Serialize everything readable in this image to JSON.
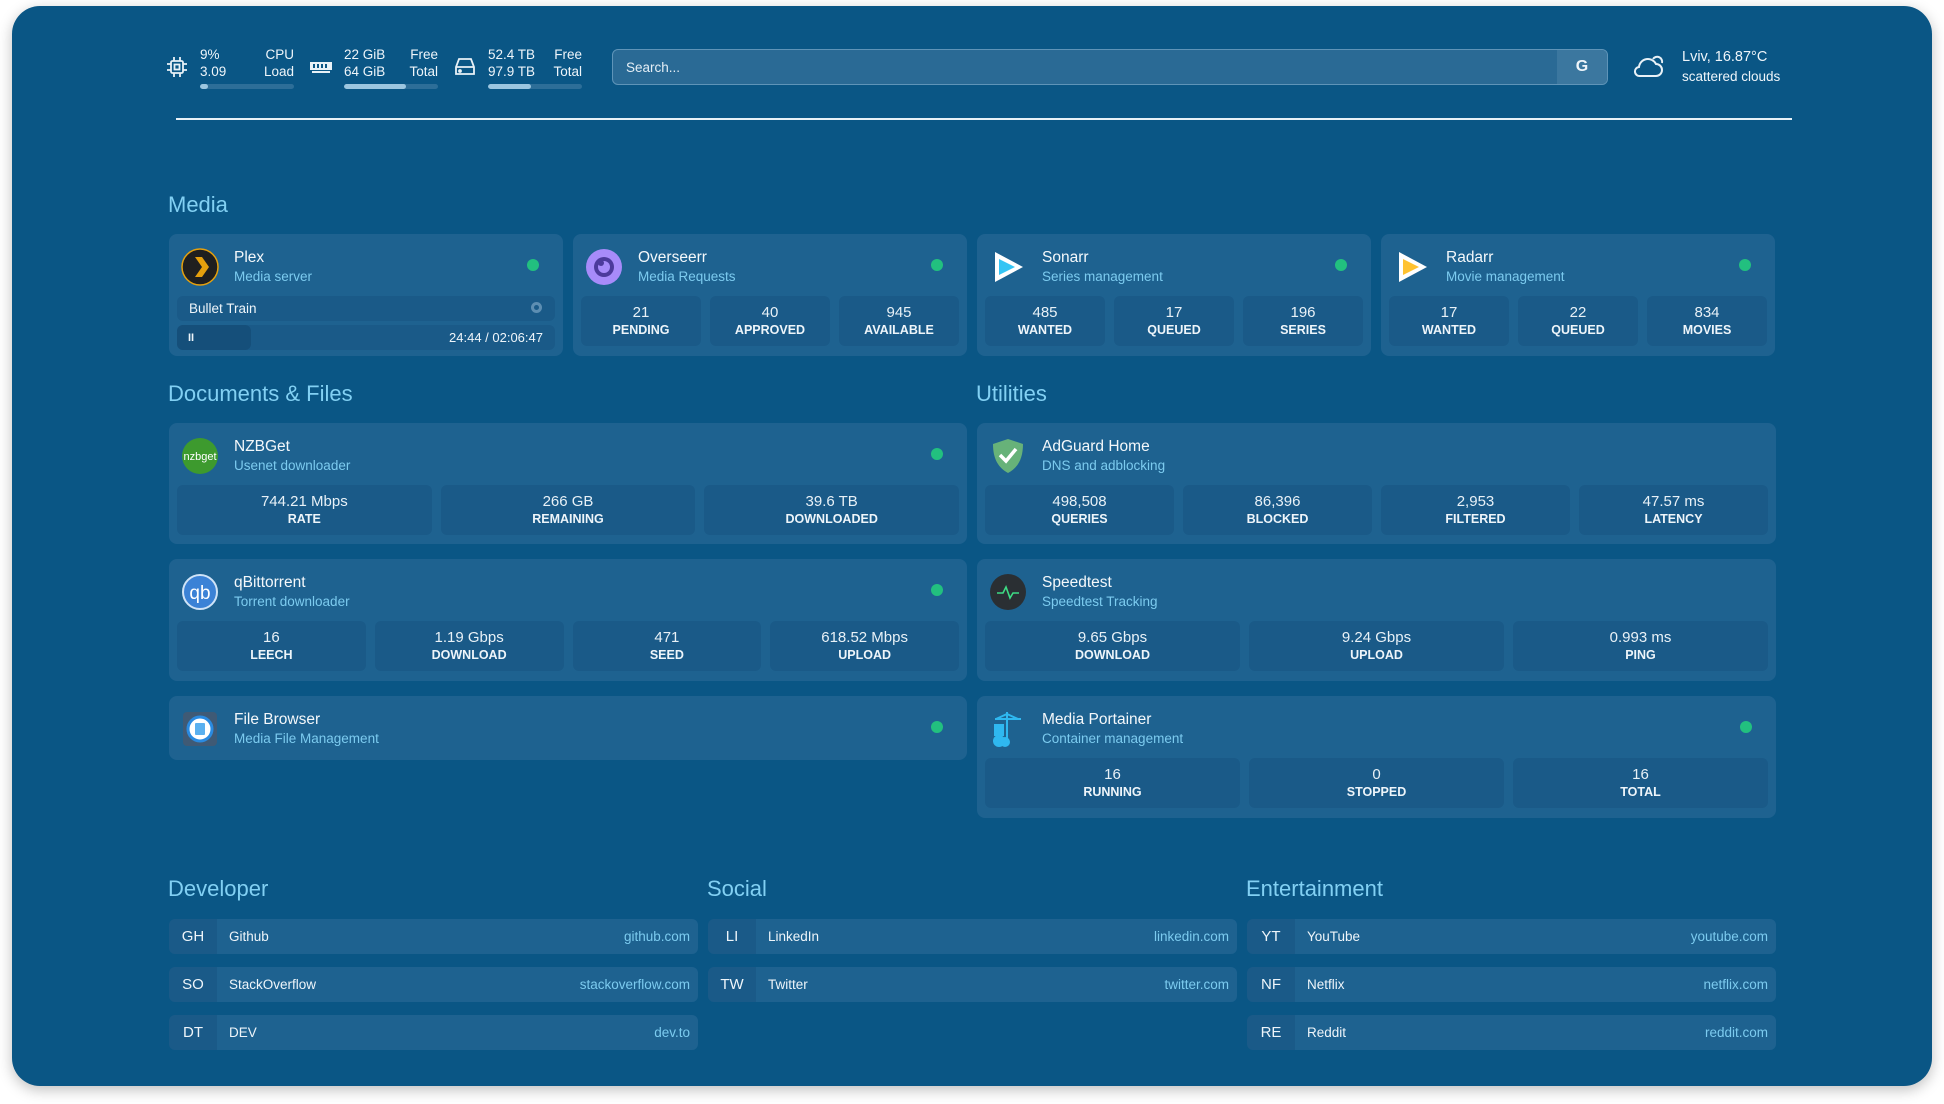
{
  "topbar": {
    "cpu": {
      "icon": "cpu-icon",
      "v1": "9%",
      "l1": "CPU",
      "v2": "3.09",
      "l2": "Load",
      "fill": 0.09
    },
    "memory": {
      "icon": "memory-icon",
      "v1": "22 GiB",
      "l1": "Free",
      "v2": "64 GiB",
      "l2": "Total",
      "fill": 0.66
    },
    "disk": {
      "icon": "disk-icon",
      "v1": "52.4 TB",
      "l1": "Free",
      "v2": "97.9 TB",
      "l2": "Total",
      "fill": 0.46
    },
    "search": {
      "placeholder": "Search...",
      "button": "G"
    },
    "weather": {
      "icon": "cloud-sun-icon",
      "location": "Lviv, 16.87°C",
      "condition": "scattered clouds"
    }
  },
  "colors": {
    "background": "#0a5685",
    "card": "#1e6290",
    "accent": "#82d0f3",
    "status_up": "#22c07f"
  },
  "sections": {
    "media": {
      "title": "Media",
      "services": [
        {
          "name": "Plex",
          "desc": "Media server",
          "icon": "plex-icon",
          "status": true,
          "now_playing": {
            "title": "Bullet Train",
            "pause": "II",
            "time": "24:44 / 02:06:47",
            "progress": 0.195
          }
        },
        {
          "name": "Overseerr",
          "desc": "Media Requests",
          "icon": "overseerr-icon",
          "status": true,
          "stats": [
            {
              "v": "21",
              "l": "PENDING"
            },
            {
              "v": "40",
              "l": "APPROVED"
            },
            {
              "v": "945",
              "l": "AVAILABLE"
            }
          ]
        },
        {
          "name": "Sonarr",
          "desc": "Series management",
          "icon": "sonarr-icon",
          "status": true,
          "stats": [
            {
              "v": "485",
              "l": "WANTED"
            },
            {
              "v": "17",
              "l": "QUEUED"
            },
            {
              "v": "196",
              "l": "SERIES"
            }
          ]
        },
        {
          "name": "Radarr",
          "desc": "Movie management",
          "icon": "radarr-icon",
          "status": true,
          "stats": [
            {
              "v": "17",
              "l": "WANTED"
            },
            {
              "v": "22",
              "l": "QUEUED"
            },
            {
              "v": "834",
              "l": "MOVIES"
            }
          ]
        }
      ]
    },
    "docs": {
      "title": "Documents & Files",
      "services": [
        {
          "name": "NZBGet",
          "desc": "Usenet downloader",
          "icon": "nzbget-icon",
          "status": true,
          "stats": [
            {
              "v": "744.21 Mbps",
              "l": "RATE"
            },
            {
              "v": "266 GB",
              "l": "REMAINING"
            },
            {
              "v": "39.6 TB",
              "l": "DOWNLOADED"
            }
          ]
        },
        {
          "name": "qBittorrent",
          "desc": "Torrent downloader",
          "icon": "qbittorrent-icon",
          "status": true,
          "stats": [
            {
              "v": "16",
              "l": "LEECH"
            },
            {
              "v": "1.19 Gbps",
              "l": "DOWNLOAD"
            },
            {
              "v": "471",
              "l": "SEED"
            },
            {
              "v": "618.52 Mbps",
              "l": "UPLOAD"
            }
          ]
        },
        {
          "name": "File Browser",
          "desc": "Media File Management",
          "icon": "filebrowser-icon",
          "status": true,
          "stats": []
        }
      ]
    },
    "utilities": {
      "title": "Utilities",
      "services": [
        {
          "name": "AdGuard Home",
          "desc": "DNS and adblocking",
          "icon": "adguard-icon",
          "status": false,
          "stats": [
            {
              "v": "498,508",
              "l": "QUERIES"
            },
            {
              "v": "86,396",
              "l": "BLOCKED"
            },
            {
              "v": "2,953",
              "l": "FILTERED"
            },
            {
              "v": "47.57 ms",
              "l": "LATENCY"
            }
          ]
        },
        {
          "name": "Speedtest",
          "desc": "Speedtest Tracking",
          "icon": "speedtest-icon",
          "status": false,
          "stats": [
            {
              "v": "9.65 Gbps",
              "l": "DOWNLOAD"
            },
            {
              "v": "9.24 Gbps",
              "l": "UPLOAD"
            },
            {
              "v": "0.993 ms",
              "l": "PING"
            }
          ]
        },
        {
          "name": "Media Portainer",
          "desc": "Container management",
          "icon": "portainer-icon",
          "status": true,
          "stats": [
            {
              "v": "16",
              "l": "RUNNING"
            },
            {
              "v": "0",
              "l": "STOPPED"
            },
            {
              "v": "16",
              "l": "TOTAL"
            }
          ]
        }
      ]
    }
  },
  "bookmarks": [
    {
      "title": "Developer",
      "items": [
        {
          "abbr": "GH",
          "name": "Github",
          "url": "github.com"
        },
        {
          "abbr": "SO",
          "name": "StackOverflow",
          "url": "stackoverflow.com"
        },
        {
          "abbr": "DT",
          "name": "DEV",
          "url": "dev.to"
        }
      ]
    },
    {
      "title": "Social",
      "items": [
        {
          "abbr": "LI",
          "name": "LinkedIn",
          "url": "linkedin.com"
        },
        {
          "abbr": "TW",
          "name": "Twitter",
          "url": "twitter.com"
        }
      ]
    },
    {
      "title": "Entertainment",
      "items": [
        {
          "abbr": "YT",
          "name": "YouTube",
          "url": "youtube.com"
        },
        {
          "abbr": "NF",
          "name": "Netflix",
          "url": "netflix.com"
        },
        {
          "abbr": "RE",
          "name": "Reddit",
          "url": "reddit.com"
        }
      ]
    }
  ]
}
